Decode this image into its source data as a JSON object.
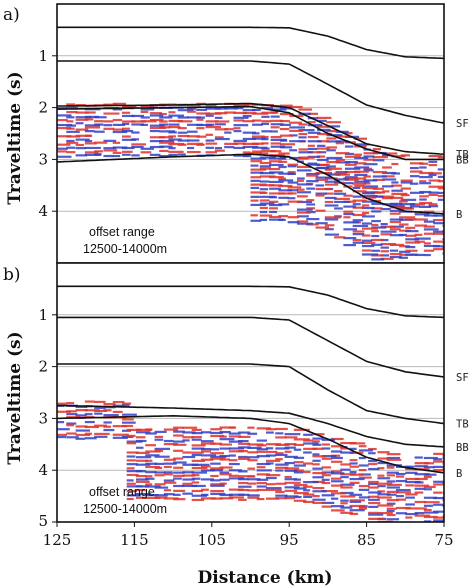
{
  "chart_data": [
    {
      "type": "line",
      "panel_label": "a)",
      "ylabel": "Traveltime (s)",
      "ylim": [
        0,
        5
      ],
      "y_ticks": [
        "1",
        "2",
        "3",
        "4"
      ],
      "grid": "horizontal",
      "annotation": [
        "offset range",
        "12500-14000m"
      ],
      "horizons": [
        {
          "name": "",
          "x": [
            125,
            100,
            95,
            90,
            85,
            80,
            75
          ],
          "y": [
            0.45,
            0.45,
            0.46,
            0.62,
            0.88,
            1.02,
            1.05
          ]
        },
        {
          "name": "SF",
          "x": [
            125,
            100,
            95,
            90,
            85,
            80,
            75
          ],
          "y": [
            1.1,
            1.1,
            1.16,
            1.55,
            1.95,
            2.15,
            2.3
          ]
        },
        {
          "name": "TB",
          "x": [
            125,
            110,
            100,
            95,
            90,
            85,
            80,
            75
          ],
          "y": [
            1.97,
            1.95,
            1.92,
            2.0,
            2.35,
            2.7,
            2.85,
            2.9
          ]
        },
        {
          "name": "BB",
          "x": [
            125,
            110,
            100,
            95,
            90,
            85,
            80,
            75
          ],
          "y": [
            2.03,
            2.0,
            1.98,
            2.1,
            2.5,
            2.8,
            3.0,
            3.0
          ]
        },
        {
          "name": "B",
          "x": [
            125,
            110,
            100,
            95,
            90,
            85,
            80,
            75
          ],
          "y": [
            3.05,
            2.95,
            2.9,
            2.95,
            3.3,
            3.75,
            4.0,
            4.05
          ]
        }
      ],
      "seismic_events": [
        {
          "x_start": 125,
          "x_end": 75,
          "t_top": 1.95,
          "t_bottom": 2.95,
          "dip_start_km": 97,
          "dip_end_km": 80,
          "dip_amount_s": 1.0
        },
        {
          "x_start": 100,
          "x_end": 80,
          "t_top": 2.9,
          "t_bottom": 4.2,
          "dip_start_km": 97,
          "dip_end_km": 80,
          "dip_amount_s": 0.9
        },
        {
          "x_start": 80,
          "x_end": 75,
          "t_top": 4.0,
          "t_bottom": 4.9,
          "dip_start_km": 97,
          "dip_end_km": 80,
          "dip_amount_s": 0
        }
      ],
      "colors": {
        "positive": "#e03028",
        "negative": "#2f40c8",
        "horizon": "#111111",
        "grid": "#b9b9b9"
      }
    },
    {
      "type": "line",
      "panel_label": "b)",
      "ylabel": "Traveltime (s)",
      "ylim": [
        0,
        5
      ],
      "y_ticks": [
        "1",
        "2",
        "3",
        "4",
        "5"
      ],
      "grid": "horizontal",
      "annotation": [
        "offset range",
        "12500-14000m"
      ],
      "horizons": [
        {
          "name": "",
          "x": [
            125,
            100,
            95,
            90,
            85,
            80,
            75
          ],
          "y": [
            0.45,
            0.45,
            0.46,
            0.62,
            0.88,
            1.02,
            1.05
          ]
        },
        {
          "name": "SF",
          "x": [
            125,
            100,
            95,
            90,
            85,
            80,
            75
          ],
          "y": [
            1.05,
            1.05,
            1.1,
            1.5,
            1.9,
            2.1,
            2.2
          ]
        },
        {
          "name": "TB",
          "x": [
            125,
            100,
            95,
            90,
            85,
            80,
            75
          ],
          "y": [
            1.95,
            1.95,
            2.0,
            2.45,
            2.85,
            3.0,
            3.1
          ]
        },
        {
          "name": "BB",
          "x": [
            125,
            110,
            100,
            95,
            90,
            85,
            80,
            75
          ],
          "y": [
            2.75,
            2.8,
            2.85,
            2.9,
            3.1,
            3.35,
            3.5,
            3.55
          ]
        },
        {
          "name": "B",
          "x": [
            125,
            110,
            100,
            95,
            90,
            85,
            80,
            75
          ],
          "y": [
            3.0,
            2.95,
            3.0,
            3.1,
            3.4,
            3.75,
            3.95,
            4.05
          ]
        }
      ],
      "seismic_events": [
        {
          "x_start": 125,
          "x_end": 116,
          "t_top": 2.7,
          "t_bottom": 3.4,
          "dip_start_km": 97,
          "dip_end_km": 80,
          "dip_amount_s": 0
        },
        {
          "x_start": 116,
          "x_end": 75,
          "t_top": 3.2,
          "t_bottom": 4.6,
          "dip_start_km": 97,
          "dip_end_km": 80,
          "dip_amount_s": 0.5
        }
      ],
      "colors": {
        "positive": "#e03028",
        "negative": "#2f40c8",
        "horizon": "#111111",
        "grid": "#b9b9b9"
      }
    }
  ],
  "x_axis": {
    "label": "Distance (km)",
    "ticks": [
      {
        "value": 125,
        "label": "125"
      },
      {
        "value": 115,
        "label": "115"
      },
      {
        "value": 105,
        "label": "105"
      },
      {
        "value": 95,
        "label": "95"
      },
      {
        "value": 85,
        "label": "85"
      },
      {
        "value": 75,
        "label": "75"
      }
    ],
    "xlim": [
      125,
      75
    ]
  }
}
